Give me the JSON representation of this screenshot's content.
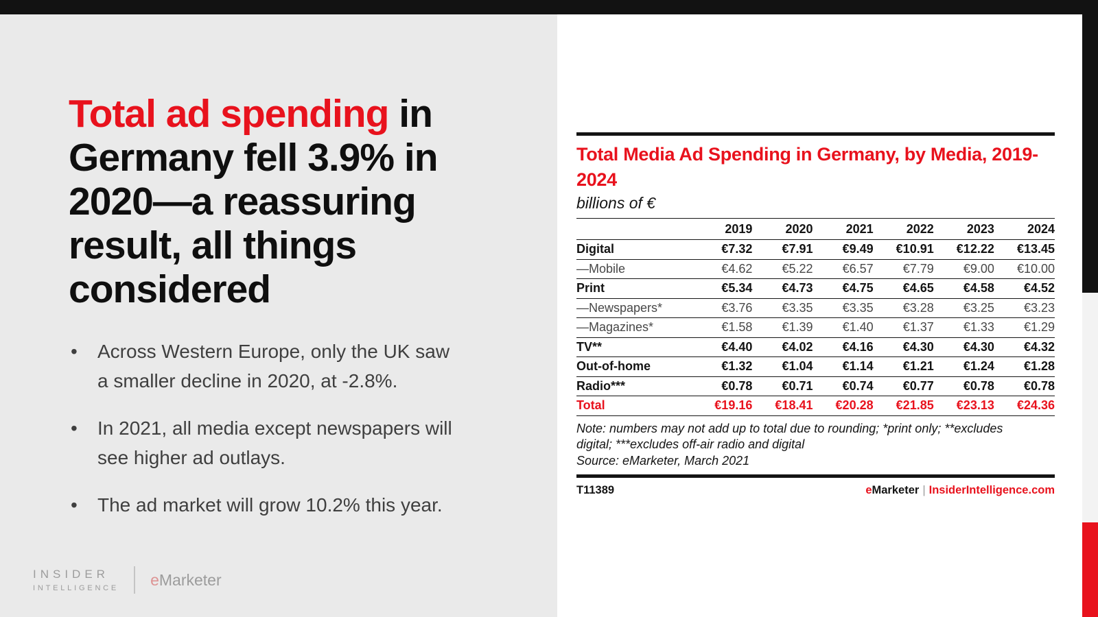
{
  "colors": {
    "accent_red": "#e8121d",
    "top_bar": "#121212",
    "left_bg": "#eaeaea",
    "edge_gray": "#f3f3f3",
    "sub_row_text": "#474747",
    "bullet_text": "#3f3f3f",
    "logo_gray": "#9c9c9c",
    "logo_e_pink": "#dd9393"
  },
  "headline": {
    "red": "Total ad spending",
    "rest": " in\nGermany fell 3.9% in\n2020—a reassuring\nresult, all things\nconsidered"
  },
  "bullets": [
    "Across Western Europe, only the UK saw\na smaller decline in 2020, at -2.8%.",
    "In 2021, all media except newspapers will\nsee higher ad outlays.",
    "The ad market will grow 10.2% this year."
  ],
  "brand": {
    "insider_line1": "INSIDER",
    "insider_line2": "INTELLIGENCE",
    "emarketer_e": "e",
    "emarketer_rest": "Marketer"
  },
  "chart_data": {
    "type": "table",
    "title": "Total Media Ad Spending in Germany, by Media, 2019-2024",
    "subtitle": "billions of €",
    "columns": [
      "2019",
      "2020",
      "2021",
      "2022",
      "2023",
      "2024"
    ],
    "rows": [
      {
        "label": "Digital",
        "emphasis": "main",
        "values": [
          "€7.32",
          "€7.91",
          "€9.49",
          "€10.91",
          "€12.22",
          "€13.45"
        ]
      },
      {
        "label": "—Mobile",
        "emphasis": "sub",
        "values": [
          "€4.62",
          "€5.22",
          "€6.57",
          "€7.79",
          "€9.00",
          "€10.00"
        ]
      },
      {
        "label": "Print",
        "emphasis": "main",
        "values": [
          "€5.34",
          "€4.73",
          "€4.75",
          "€4.65",
          "€4.58",
          "€4.52"
        ]
      },
      {
        "label": "—Newspapers*",
        "emphasis": "sub",
        "values": [
          "€3.76",
          "€3.35",
          "€3.35",
          "€3.28",
          "€3.25",
          "€3.23"
        ]
      },
      {
        "label": "—Magazines*",
        "emphasis": "sub",
        "values": [
          "€1.58",
          "€1.39",
          "€1.40",
          "€1.37",
          "€1.33",
          "€1.29"
        ]
      },
      {
        "label": "TV**",
        "emphasis": "main",
        "values": [
          "€4.40",
          "€4.02",
          "€4.16",
          "€4.30",
          "€4.30",
          "€4.32"
        ]
      },
      {
        "label": "Out-of-home",
        "emphasis": "main",
        "values": [
          "€1.32",
          "€1.04",
          "€1.14",
          "€1.21",
          "€1.24",
          "€1.28"
        ]
      },
      {
        "label": "Radio***",
        "emphasis": "main",
        "values": [
          "€0.78",
          "€0.71",
          "€0.74",
          "€0.77",
          "€0.78",
          "€0.78"
        ]
      },
      {
        "label": "Total",
        "emphasis": "total",
        "values": [
          "€19.16",
          "€18.41",
          "€20.28",
          "€21.85",
          "€23.13",
          "€24.36"
        ]
      }
    ],
    "note": "Note: numbers may not add up to total due to rounding; *print only; **excludes\ndigital; ***excludes off-air radio and digital",
    "source": "Source: eMarketer, March 2021"
  },
  "chart_footer": {
    "chart_id": "T11389",
    "brand_e": "e",
    "brand_rest": "Marketer",
    "separator": "|",
    "site": "InsiderIntelligence.com"
  }
}
